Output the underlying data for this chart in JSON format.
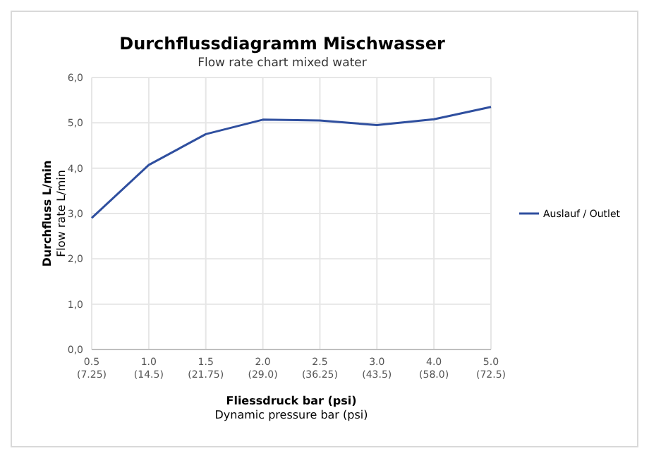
{
  "chart_data": {
    "type": "line",
    "title": "Durchflussdiagramm Mischwasser",
    "subtitle": "Flow rate chart mixed water",
    "xlabel": "Fliessdruck bar (psi)\nDynamic pressure bar (psi)",
    "ylabel": "Durchfluss L/min\nFlow rate L/min",
    "categories": [
      "0.5\n(7.25)",
      "1.0\n(14.5)",
      "1.5\n(21.75)",
      "2.0\n(29.0)",
      "2.5\n(36.25)",
      "3.0\n(43.5)",
      "4.0\n(58.0)",
      "5.0\n(72.5)"
    ],
    "series": [
      {
        "name": "Auslauf / Outlet",
        "color": "#2f4f9f",
        "values": [
          2.9,
          4.07,
          4.75,
          5.07,
          5.05,
          4.95,
          5.08,
          5.35
        ]
      }
    ],
    "ylim": [
      0,
      6
    ],
    "yticks": [
      {
        "value": 0,
        "label": "0,0"
      },
      {
        "value": 1,
        "label": "1,0"
      },
      {
        "value": 2,
        "label": "2,0"
      },
      {
        "value": 3,
        "label": "3,0"
      },
      {
        "value": 4,
        "label": "4,0"
      },
      {
        "value": 5,
        "label": "5,0"
      },
      {
        "value": 6,
        "label": "6,0"
      }
    ],
    "grid": true,
    "legend": "right"
  }
}
